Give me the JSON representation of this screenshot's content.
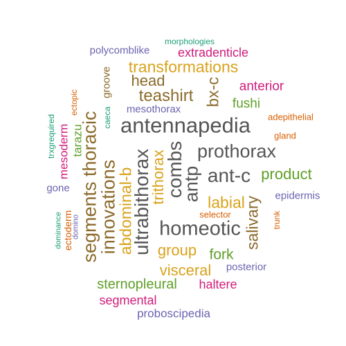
{
  "words": {
    "antennapedia": "antennapedia",
    "ultrabithorax": "ultrabithorax",
    "homeotic": "homeotic",
    "prothorax": "prothorax",
    "segments_thoracic": "segments thoracic",
    "combs": "combs",
    "innovations": "innovations",
    "ant_c": "ant-c",
    "antp": "antp",
    "teashirt": "teashirt",
    "transformations": "transformations",
    "bx_c": "bx-c",
    "abdominal_b": "abdominal-b",
    "salivary": "salivary",
    "trithorax": "trithorax",
    "labial": "labial",
    "product": "product",
    "head": "head",
    "group": "group",
    "visceral": "visceral",
    "fork": "fork",
    "sternopleural": "sternopleural",
    "anterior": "anterior",
    "fushi": "fushi",
    "extradenticle": "extradenticle",
    "haltere": "haltere",
    "segmental": "segmental",
    "proboscipedia": "proboscipedia",
    "mesothorax": "mesothorax",
    "tarazu": "tarazu",
    "mesoderm": "mesoderm",
    "polycomblike": "polycomblike",
    "epidermis": "epidermis",
    "posterior": "posterior",
    "groove": "groove",
    "gone": "gone",
    "ectoderm": "ectoderm",
    "selector": "selector",
    "adepithelial": "adepithelial",
    "gland": "gland",
    "trunk": "trunk",
    "morphologies": "morphologies",
    "ectopic": "ectopic",
    "caeca": "caeca",
    "trxgrequired": "trxgrequired",
    "dominance": "dominance",
    "domino": "domino"
  }
}
